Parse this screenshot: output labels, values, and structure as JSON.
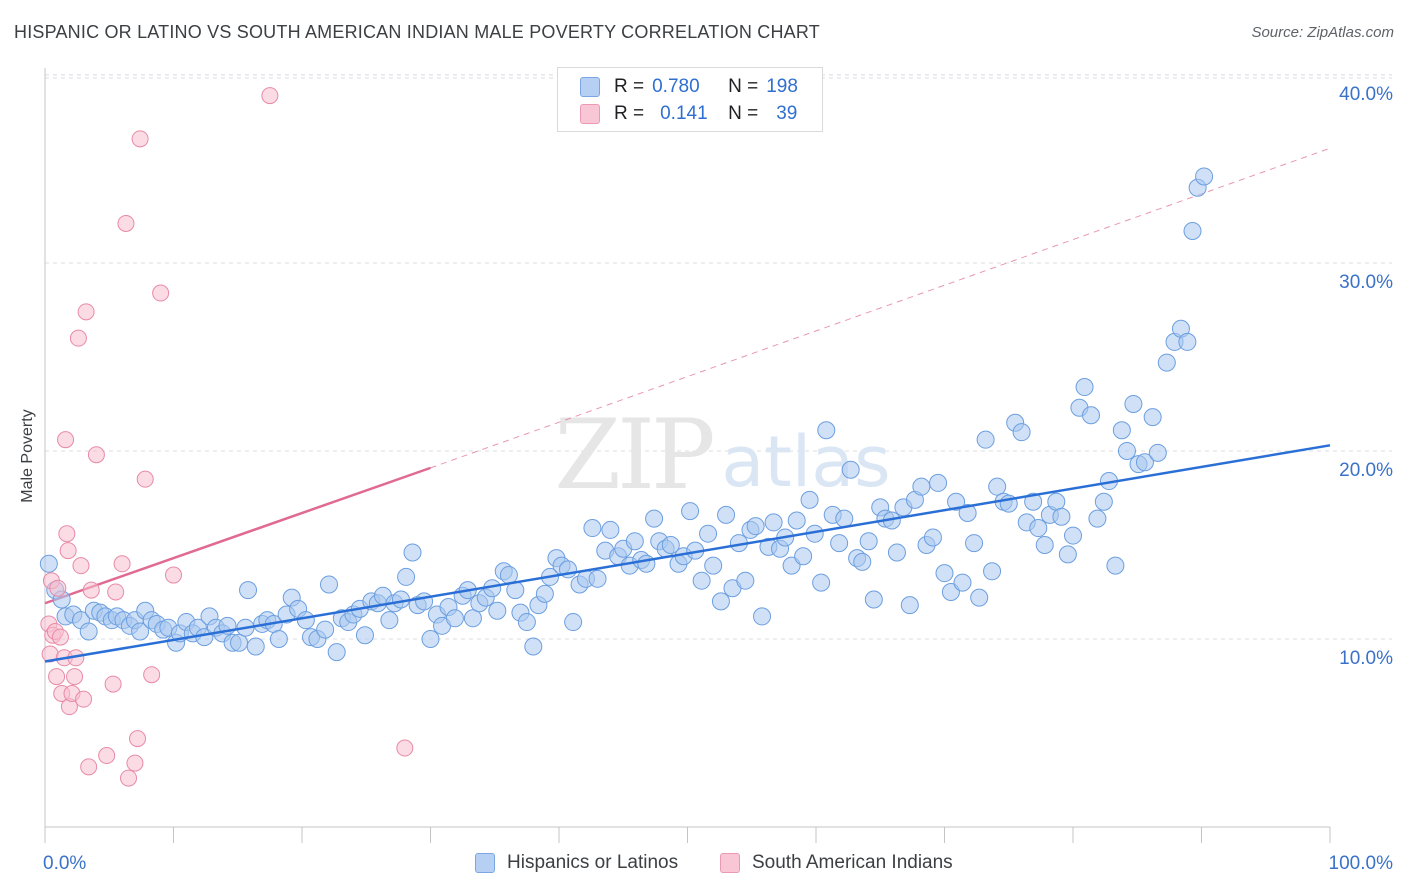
{
  "header": {
    "title": "HISPANIC OR LATINO VS SOUTH AMERICAN INDIAN MALE POVERTY CORRELATION CHART",
    "source": "Source: ZipAtlas.com"
  },
  "watermark": {
    "zip": "ZIP",
    "atlas": "atlas"
  },
  "legend_box": {
    "rows": [
      {
        "r_label": "R = ",
        "r_value": "0.780",
        "n_label": "N = ",
        "n_value": "198"
      },
      {
        "r_label": "R = ",
        "r_value": "0.141",
        "n_label": "N = ",
        "n_value": "39"
      }
    ]
  },
  "bottom_legend": {
    "series1": "Hispanics or Latinos",
    "series2": "South American Indians"
  },
  "colors": {
    "blue_fill": "#a9c8f0",
    "blue_stroke": "#6c9fe0",
    "blue_line": "#2a6fd6",
    "pink_fill": "#f7bfd0",
    "pink_stroke": "#e88aa8",
    "pink_line": "#e06a93",
    "tick_label": "#3a72c9",
    "grid": "#dadce0"
  },
  "chart_data": {
    "type": "scatter",
    "xlabel": "",
    "ylabel": "Male Poverty",
    "xlim": [
      0,
      100
    ],
    "ylim": [
      0,
      40.9
    ],
    "x_tick_labels": [
      "0.0%",
      "100.0%"
    ],
    "y_ticks": [
      10,
      20,
      30,
      40
    ],
    "y_tick_labels": [
      "10.0%",
      "20.0%",
      "30.0%",
      "40.0%"
    ],
    "grid": "horizontal dashed",
    "series": [
      {
        "name": "Hispanics or Latinos",
        "color": "#a9c8f0",
        "trend": {
          "x": [
            0,
            100
          ],
          "y": [
            8.8,
            20.3
          ],
          "extended": false
        },
        "points": [
          [
            0.3,
            14.0
          ],
          [
            0.8,
            12.6
          ],
          [
            1.3,
            12.1
          ],
          [
            1.6,
            11.2
          ],
          [
            2.2,
            11.3
          ],
          [
            2.8,
            11.0
          ],
          [
            3.4,
            10.4
          ],
          [
            3.8,
            11.5
          ],
          [
            4.3,
            11.4
          ],
          [
            4.7,
            11.2
          ],
          [
            5.2,
            11.0
          ],
          [
            5.6,
            11.2
          ],
          [
            6.1,
            11.0
          ],
          [
            6.6,
            10.7
          ],
          [
            7.0,
            11.0
          ],
          [
            7.4,
            10.4
          ],
          [
            7.8,
            11.5
          ],
          [
            8.3,
            11.0
          ],
          [
            8.7,
            10.8
          ],
          [
            9.2,
            10.5
          ],
          [
            9.6,
            10.6
          ],
          [
            10.2,
            9.8
          ],
          [
            10.5,
            10.3
          ],
          [
            11.0,
            10.9
          ],
          [
            11.5,
            10.3
          ],
          [
            11.9,
            10.6
          ],
          [
            12.4,
            10.1
          ],
          [
            12.8,
            11.2
          ],
          [
            13.3,
            10.6
          ],
          [
            13.8,
            10.3
          ],
          [
            14.2,
            10.7
          ],
          [
            14.6,
            9.8
          ],
          [
            15.1,
            9.8
          ],
          [
            15.6,
            10.6
          ],
          [
            15.8,
            12.6
          ],
          [
            16.4,
            9.6
          ],
          [
            16.9,
            10.8
          ],
          [
            17.3,
            11.0
          ],
          [
            17.8,
            10.8
          ],
          [
            18.2,
            10.0
          ],
          [
            18.8,
            11.3
          ],
          [
            19.2,
            12.2
          ],
          [
            19.7,
            11.6
          ],
          [
            20.3,
            11.0
          ],
          [
            20.7,
            10.1
          ],
          [
            21.2,
            10.0
          ],
          [
            21.8,
            10.5
          ],
          [
            22.1,
            12.9
          ],
          [
            22.7,
            9.3
          ],
          [
            23.1,
            11.1
          ],
          [
            23.6,
            10.9
          ],
          [
            24.0,
            11.3
          ],
          [
            24.5,
            11.6
          ],
          [
            24.9,
            10.2
          ],
          [
            25.4,
            12.0
          ],
          [
            25.9,
            11.9
          ],
          [
            26.3,
            12.3
          ],
          [
            26.8,
            11.0
          ],
          [
            27.2,
            11.9
          ],
          [
            27.7,
            12.1
          ],
          [
            28.1,
            13.3
          ],
          [
            28.6,
            14.6
          ],
          [
            29.0,
            11.8
          ],
          [
            29.5,
            12.0
          ],
          [
            30.0,
            10.0
          ],
          [
            30.5,
            11.3
          ],
          [
            30.9,
            10.7
          ],
          [
            31.4,
            11.7
          ],
          [
            31.9,
            11.1
          ],
          [
            32.5,
            12.3
          ],
          [
            32.9,
            12.6
          ],
          [
            33.3,
            11.1
          ],
          [
            33.8,
            11.9
          ],
          [
            34.3,
            12.2
          ],
          [
            34.8,
            12.7
          ],
          [
            35.2,
            11.5
          ],
          [
            35.7,
            13.6
          ],
          [
            36.1,
            13.4
          ],
          [
            36.6,
            12.6
          ],
          [
            37.0,
            11.4
          ],
          [
            37.5,
            10.9
          ],
          [
            38.0,
            9.6
          ],
          [
            38.4,
            11.8
          ],
          [
            38.9,
            12.4
          ],
          [
            39.3,
            13.3
          ],
          [
            39.8,
            14.3
          ],
          [
            40.2,
            13.9
          ],
          [
            40.7,
            13.7
          ],
          [
            41.1,
            10.9
          ],
          [
            41.6,
            12.9
          ],
          [
            42.1,
            13.2
          ],
          [
            42.6,
            15.9
          ],
          [
            43.0,
            13.2
          ],
          [
            43.6,
            14.7
          ],
          [
            44.0,
            15.8
          ],
          [
            44.6,
            14.4
          ],
          [
            45.0,
            14.8
          ],
          [
            45.5,
            13.9
          ],
          [
            45.9,
            15.2
          ],
          [
            46.4,
            14.2
          ],
          [
            46.8,
            14.0
          ],
          [
            47.4,
            16.4
          ],
          [
            47.8,
            15.2
          ],
          [
            48.3,
            14.8
          ],
          [
            48.7,
            15.0
          ],
          [
            49.3,
            14.0
          ],
          [
            49.7,
            14.4
          ],
          [
            50.2,
            16.8
          ],
          [
            50.6,
            14.7
          ],
          [
            51.1,
            13.1
          ],
          [
            51.6,
            15.6
          ],
          [
            52.0,
            13.9
          ],
          [
            52.6,
            12.0
          ],
          [
            53.0,
            16.6
          ],
          [
            53.5,
            12.7
          ],
          [
            54.0,
            15.1
          ],
          [
            54.5,
            13.1
          ],
          [
            54.9,
            15.8
          ],
          [
            55.3,
            16.0
          ],
          [
            55.8,
            11.2
          ],
          [
            56.3,
            14.9
          ],
          [
            56.7,
            16.2
          ],
          [
            57.2,
            14.8
          ],
          [
            57.6,
            15.4
          ],
          [
            58.1,
            13.9
          ],
          [
            58.5,
            16.3
          ],
          [
            59.0,
            14.4
          ],
          [
            59.5,
            17.4
          ],
          [
            59.9,
            15.6
          ],
          [
            60.4,
            13.0
          ],
          [
            60.8,
            21.1
          ],
          [
            61.3,
            16.6
          ],
          [
            61.8,
            15.1
          ],
          [
            62.2,
            16.4
          ],
          [
            62.7,
            19.0
          ],
          [
            63.2,
            14.3
          ],
          [
            63.6,
            14.1
          ],
          [
            64.1,
            15.2
          ],
          [
            64.5,
            12.1
          ],
          [
            65.0,
            17.0
          ],
          [
            65.4,
            16.4
          ],
          [
            65.9,
            16.3
          ],
          [
            66.3,
            14.6
          ],
          [
            66.8,
            17.0
          ],
          [
            67.3,
            11.8
          ],
          [
            67.7,
            17.4
          ],
          [
            68.2,
            18.1
          ],
          [
            68.6,
            15.0
          ],
          [
            69.1,
            15.4
          ],
          [
            69.5,
            18.3
          ],
          [
            70.0,
            13.5
          ],
          [
            70.5,
            12.5
          ],
          [
            70.9,
            17.3
          ],
          [
            71.4,
            13.0
          ],
          [
            71.8,
            16.7
          ],
          [
            72.3,
            15.1
          ],
          [
            72.7,
            12.2
          ],
          [
            73.2,
            20.6
          ],
          [
            73.7,
            13.6
          ],
          [
            74.1,
            18.1
          ],
          [
            74.6,
            17.3
          ],
          [
            75.0,
            17.2
          ],
          [
            75.5,
            21.5
          ],
          [
            76.0,
            21.0
          ],
          [
            76.4,
            16.2
          ],
          [
            76.9,
            17.3
          ],
          [
            77.3,
            15.9
          ],
          [
            77.8,
            15.0
          ],
          [
            78.2,
            16.6
          ],
          [
            78.7,
            17.3
          ],
          [
            79.1,
            16.5
          ],
          [
            79.6,
            14.5
          ],
          [
            80.0,
            15.5
          ],
          [
            80.5,
            22.3
          ],
          [
            80.9,
            23.4
          ],
          [
            81.4,
            21.9
          ],
          [
            81.9,
            16.4
          ],
          [
            82.4,
            17.3
          ],
          [
            82.8,
            18.4
          ],
          [
            83.3,
            13.9
          ],
          [
            83.8,
            21.1
          ],
          [
            84.2,
            20.0
          ],
          [
            84.7,
            22.5
          ],
          [
            85.1,
            19.3
          ],
          [
            85.6,
            19.4
          ],
          [
            86.2,
            21.8
          ],
          [
            86.6,
            19.9
          ],
          [
            87.3,
            24.7
          ],
          [
            87.9,
            25.8
          ],
          [
            88.4,
            26.5
          ],
          [
            88.9,
            25.8
          ],
          [
            89.3,
            31.7
          ],
          [
            89.7,
            34.0
          ],
          [
            90.2,
            34.6
          ]
        ]
      },
      {
        "name": "South American Indians",
        "color": "#f7bfd0",
        "trend": {
          "x": [
            0,
            30
          ],
          "y": [
            11.9,
            19.1
          ],
          "extended_to": [
            100,
            36.1
          ]
        },
        "points": [
          [
            0.3,
            10.8
          ],
          [
            0.4,
            9.2
          ],
          [
            0.5,
            13.1
          ],
          [
            0.6,
            10.2
          ],
          [
            0.8,
            10.4
          ],
          [
            0.9,
            8.0
          ],
          [
            1.0,
            12.7
          ],
          [
            1.2,
            10.1
          ],
          [
            1.3,
            7.1
          ],
          [
            1.5,
            9.0
          ],
          [
            1.6,
            20.6
          ],
          [
            1.7,
            15.6
          ],
          [
            1.8,
            14.7
          ],
          [
            1.9,
            6.4
          ],
          [
            2.1,
            7.1
          ],
          [
            2.3,
            8.0
          ],
          [
            2.4,
            9.0
          ],
          [
            2.6,
            26.0
          ],
          [
            2.8,
            13.9
          ],
          [
            3.0,
            6.8
          ],
          [
            3.2,
            27.4
          ],
          [
            3.4,
            3.2
          ],
          [
            3.6,
            12.6
          ],
          [
            4.0,
            19.8
          ],
          [
            4.8,
            3.8
          ],
          [
            5.3,
            7.6
          ],
          [
            5.5,
            12.5
          ],
          [
            6.0,
            14.0
          ],
          [
            6.3,
            32.1
          ],
          [
            6.5,
            2.6
          ],
          [
            7.0,
            3.4
          ],
          [
            7.2,
            4.7
          ],
          [
            7.4,
            36.6
          ],
          [
            7.8,
            18.5
          ],
          [
            8.3,
            8.1
          ],
          [
            9.0,
            28.4
          ],
          [
            10.0,
            13.4
          ],
          [
            17.5,
            38.9
          ],
          [
            28.0,
            4.2
          ]
        ]
      }
    ]
  }
}
